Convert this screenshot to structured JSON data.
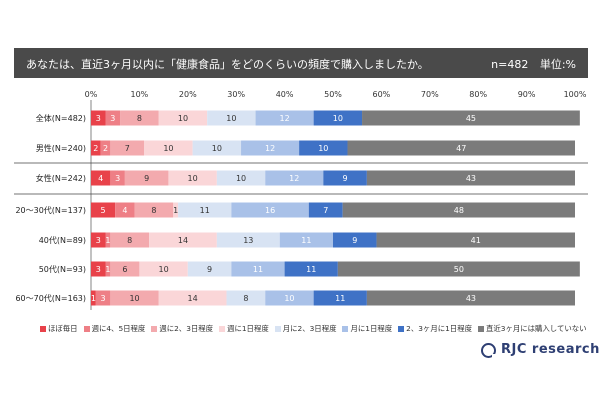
{
  "header": {
    "question": "あなたは、直近3ヶ月以内に「健康食品」をどのくらいの頻度で購入しましたか。",
    "n_label": "n=482",
    "unit_label": "単位:%"
  },
  "colors": {
    "header_bg": "#4a4a4a",
    "series": [
      "#e8424a",
      "#ee7f86",
      "#f3aaae",
      "#fad6d8",
      "#d8e3f3",
      "#a9c1e8",
      "#3f72c6",
      "#7b7b7b"
    ]
  },
  "logo": {
    "text": "RJC research"
  },
  "chart_data": {
    "type": "bar",
    "orientation": "horizontal",
    "stacked": true,
    "xlim": [
      0,
      100
    ],
    "xticks": [
      "0%",
      "10%",
      "20%",
      "30%",
      "40%",
      "50%",
      "60%",
      "70%",
      "80%",
      "90%",
      "100%"
    ],
    "categories": [
      "全体(N=482)",
      "男性(N=240)",
      "女性(N=242)",
      "20～30代(N=137)",
      "40代(N=89)",
      "50代(N=93)",
      "60～70代(N=163)"
    ],
    "series": [
      {
        "name": "ほぼ毎日",
        "values": [
          3,
          2,
          4,
          5,
          3,
          3,
          1
        ]
      },
      {
        "name": "週に4、5日程度",
        "values": [
          3,
          2,
          3,
          4,
          1,
          1,
          3
        ]
      },
      {
        "name": "週に2、3日程度",
        "values": [
          8,
          7,
          9,
          8,
          8,
          6,
          10
        ]
      },
      {
        "name": "週に1日程度",
        "values": [
          10,
          10,
          10,
          1,
          14,
          10,
          14
        ]
      },
      {
        "name": "月に2、3日程度",
        "values": [
          10,
          10,
          10,
          11,
          13,
          9,
          8
        ]
      },
      {
        "name": "月に1日程度",
        "values": [
          12,
          12,
          12,
          16,
          11,
          11,
          10
        ]
      },
      {
        "name": "2、3ヶ月に1日程度",
        "values": [
          10,
          10,
          9,
          7,
          9,
          11,
          11
        ]
      },
      {
        "name": "直近3ヶ月には購入していない",
        "values": [
          45,
          47,
          43,
          48,
          41,
          50,
          43
        ]
      }
    ]
  }
}
